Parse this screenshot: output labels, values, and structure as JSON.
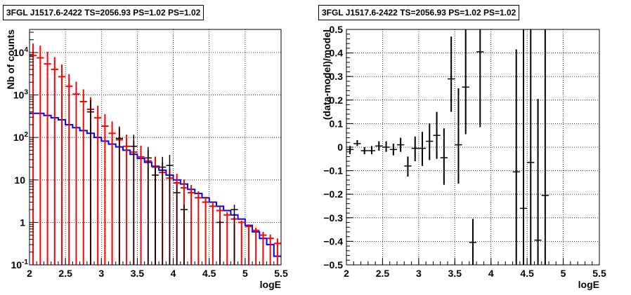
{
  "chart_data": [
    {
      "type": "histogram",
      "title": "3FGL J1517.6-2422 TS=2056.93 PS=1.02 PS=1.02",
      "xlabel": "logE",
      "ylabel": "Nb of counts",
      "xlim": [
        2,
        5.5
      ],
      "ylim": [
        0.1,
        35000
      ],
      "ylog": true,
      "grid": true,
      "xticks": [
        "2",
        "2.5",
        "3",
        "3.5",
        "4",
        "4.5",
        "5",
        "5.5"
      ],
      "yticks": [
        {
          "v": 0.1,
          "label": "10",
          "exp": "-1"
        },
        {
          "v": 1,
          "label": "1",
          "exp": ""
        },
        {
          "v": 10,
          "label": "10",
          "exp": ""
        },
        {
          "v": 100,
          "label": "10",
          "exp": "2"
        },
        {
          "v": 1000,
          "label": "10",
          "exp": "3"
        },
        {
          "v": 10000,
          "label": "10",
          "exp": "4"
        }
      ],
      "bin_width": 0.1,
      "bin_centers": [
        2.05,
        2.15,
        2.25,
        2.35,
        2.45,
        2.55,
        2.65,
        2.75,
        2.85,
        2.95,
        3.05,
        3.15,
        3.25,
        3.35,
        3.45,
        3.55,
        3.65,
        3.75,
        3.85,
        3.95,
        4.05,
        4.15,
        4.25,
        4.35,
        4.45,
        4.55,
        4.65,
        4.75,
        4.85,
        4.95,
        5.05,
        5.15,
        5.25,
        5.35,
        5.45
      ],
      "series": [
        {
          "name": "blue",
          "color": "#0000ff",
          "style": "step",
          "values": [
            370,
            370,
            330,
            290,
            260,
            200,
            170,
            145,
            125,
            100,
            82,
            70,
            60,
            50,
            40,
            32,
            26,
            21,
            17,
            13,
            10,
            8,
            6,
            4.8,
            3.8,
            3.0,
            2.4,
            1.9,
            1.5,
            1.2,
            0.85,
            0.6,
            0.42,
            0.3,
            0.16
          ]
        },
        {
          "name": "red",
          "color": "#ff0000",
          "style": "errorbar",
          "values": [
            8500,
            7500,
            5400,
            4000,
            2700,
            1600,
            1050,
            700,
            460,
            290,
            185,
            125,
            88,
            62,
            45,
            35,
            28,
            20,
            15,
            11,
            8.5,
            6.5,
            5.0,
            3.8,
            3.0,
            2.4,
            1.9,
            1.5,
            1.2,
            1.0,
            0.8,
            0.65,
            0.5,
            0.42,
            0.32
          ],
          "err_low": [
            9200,
            8000,
            5700,
            4200,
            2850,
            1700,
            1100,
            740,
            490,
            310,
            200,
            136,
            97,
            70,
            52,
            41,
            34,
            25,
            19.5,
            15,
            12,
            9.5,
            7.7,
            6.2,
            5.2,
            4.4,
            3.6,
            3.0,
            2.6,
            2.2,
            1.9,
            1.6,
            1.3,
            1.2,
            1.0
          ],
          "err_high": [
            7800,
            7000,
            5100,
            3800,
            2550,
            1500,
            1000,
            660,
            430,
            270,
            170,
            114,
            79,
            54,
            38,
            29,
            22,
            15.5,
            11,
            7.5,
            5.5,
            3.8,
            2.6,
            1.6,
            1.0,
            0.6,
            0.4,
            0.25,
            0.15,
            0.1,
            0.1,
            0.1,
            0.1,
            0.1,
            0.1
          ]
        },
        {
          "name": "black",
          "color": "#000000",
          "style": "errorbar",
          "x": [
            2.85,
            3.25,
            3.45,
            3.65,
            3.75,
            3.85,
            3.95,
            4.05,
            4.15,
            4.65,
            4.85
          ],
          "values": [
            400,
            95,
            62,
            33,
            13,
            20,
            22,
            5,
            2,
            1,
            2
          ],
          "err_low": [
            440,
            104,
            70,
            39,
            17,
            25,
            27,
            7.5,
            3.5,
            1.7,
            3.5
          ],
          "err_high": [
            360,
            86,
            54,
            27,
            9,
            15,
            17,
            2.8,
            0.6,
            0.1,
            0.6
          ]
        }
      ]
    },
    {
      "type": "errorbar",
      "title": "3FGL J1517.6-2422 TS=2056.93 PS=1.02 PS=1.02",
      "xlabel": "logE",
      "ylabel": "(data-model)/model",
      "xlim": [
        2,
        5.5
      ],
      "ylim": [
        -0.5,
        0.5
      ],
      "grid": true,
      "xticks": [
        "2",
        "2.5",
        "3",
        "3.5",
        "4",
        "4.5",
        "5",
        "5.5"
      ],
      "yticks": [
        "-0.5",
        "-0.4",
        "-0.3",
        "-0.2",
        "-0.1",
        "0",
        "0.1",
        "0.2",
        "0.3",
        "0.4",
        "0.5"
      ],
      "bin_width": 0.1,
      "series": [
        {
          "name": "residuals",
          "color": "#000000",
          "x": [
            2.05,
            2.15,
            2.25,
            2.35,
            2.45,
            2.55,
            2.65,
            2.75,
            2.85,
            2.95,
            3.05,
            3.15,
            3.25,
            3.35,
            3.45,
            3.55,
            3.65,
            3.75,
            3.85,
            4.35,
            4.45,
            4.55,
            4.65,
            4.75
          ],
          "y": [
            -0.01,
            0.015,
            -0.015,
            -0.015,
            0.005,
            0.0,
            -0.01,
            0.01,
            -0.08,
            -0.005,
            -0.005,
            0.025,
            0.05,
            -0.045,
            0.29,
            0.01,
            0.255,
            -0.405,
            0.405,
            -0.105,
            -0.26,
            -0.065,
            -0.395,
            -0.205
          ],
          "err_low": [
            0.02,
            0.01,
            0.015,
            0.015,
            0.02,
            0.02,
            0.025,
            0.03,
            0.045,
            0.055,
            0.075,
            0.08,
            0.1,
            0.115,
            0.14,
            0.165,
            0.2,
            0.195,
            0.32,
            0.6,
            0.6,
            0.6,
            0.6,
            0.6
          ],
          "err_high": [
            0.015,
            0.015,
            0.015,
            0.02,
            0.02,
            0.025,
            0.025,
            0.03,
            0.04,
            0.05,
            0.07,
            0.075,
            0.1,
            0.125,
            0.18,
            0.24,
            0.25,
            0.1,
            0.15,
            0.52,
            0.78,
            0.6,
            0.6,
            0.72
          ]
        }
      ]
    }
  ]
}
